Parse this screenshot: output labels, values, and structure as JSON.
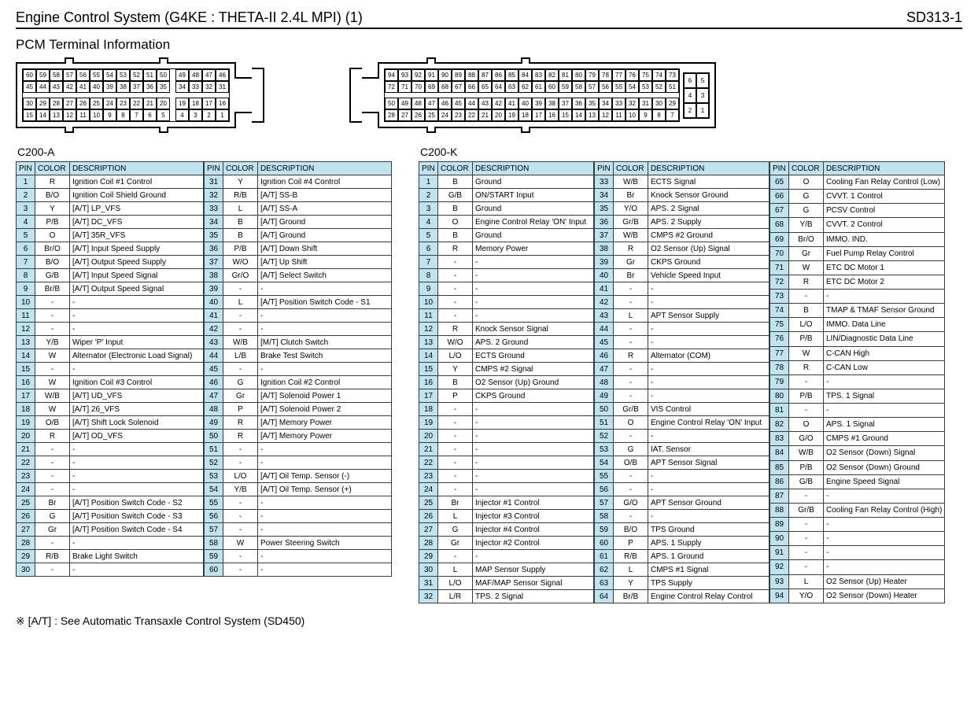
{
  "header": {
    "title": "Engine Control System (G4KE : THETA-II 2.4L MPI) (1)",
    "code": "SD313-1"
  },
  "subtitle": "PCM Terminal Information",
  "connectorA": {
    "label": "C200-A",
    "diagram": {
      "rows": [
        [
          60,
          59,
          58,
          57,
          56,
          55,
          54,
          53,
          52,
          51,
          50,
          null,
          49,
          48,
          47,
          46
        ],
        [
          45,
          44,
          43,
          42,
          41,
          40,
          39,
          38,
          37,
          36,
          35,
          null,
          34,
          33,
          32,
          31
        ],
        "gap",
        [
          30,
          29,
          28,
          27,
          26,
          25,
          24,
          23,
          22,
          21,
          20,
          null,
          19,
          18,
          17,
          16
        ],
        [
          15,
          14,
          13,
          12,
          11,
          10,
          9,
          8,
          7,
          6,
          5,
          null,
          4,
          3,
          2,
          1
        ]
      ]
    },
    "headers": [
      "PIN",
      "COLOR",
      "DESCRIPTION"
    ],
    "blocks": [
      [
        [
          1,
          "R",
          "Ignition Coil #1 Control"
        ],
        [
          2,
          "B/O",
          "Ignition Coil Shield Ground"
        ],
        [
          3,
          "Y",
          "[A/T] LP_VFS"
        ],
        [
          4,
          "P/B",
          "[A/T] DC_VFS"
        ],
        [
          5,
          "O",
          "[A/T] 35R_VFS"
        ],
        [
          6,
          "Br/O",
          "[A/T] Input Speed Supply"
        ],
        [
          7,
          "B/O",
          "[A/T] Output Speed Supply"
        ],
        [
          8,
          "G/B",
          "[A/T] Input Speed Signal"
        ],
        [
          9,
          "Br/B",
          "[A/T] Output Speed Signal"
        ],
        [
          10,
          "-",
          "-"
        ],
        [
          11,
          "-",
          "-"
        ],
        [
          12,
          "-",
          "-"
        ],
        [
          13,
          "Y/B",
          "Wiper 'P' Input"
        ],
        [
          14,
          "W",
          "Alternator (Electronic Load Signal)"
        ],
        [
          15,
          "-",
          "-"
        ],
        [
          16,
          "W",
          "Ignition Coil #3 Control"
        ],
        [
          17,
          "W/B",
          "[A/T] UD_VFS"
        ],
        [
          18,
          "W",
          "[A/T] 26_VFS"
        ],
        [
          19,
          "O/B",
          "[A/T] Shift Lock Solenoid"
        ],
        [
          20,
          "R",
          "[A/T] OD_VFS"
        ],
        [
          21,
          "-",
          "-"
        ],
        [
          22,
          "-",
          "-"
        ],
        [
          23,
          "-",
          "-"
        ],
        [
          24,
          "-",
          "-"
        ],
        [
          25,
          "Br",
          "[A/T] Position Switch Code - S2"
        ],
        [
          26,
          "G",
          "[A/T] Position Switch Code - S3"
        ],
        [
          27,
          "Gr",
          "[A/T] Position Switch Code - S4"
        ],
        [
          28,
          "-",
          "-"
        ],
        [
          29,
          "R/B",
          "Brake Light Switch"
        ],
        [
          30,
          "-",
          "-"
        ]
      ],
      [
        [
          31,
          "Y",
          "Ignition Coil #4 Control"
        ],
        [
          32,
          "R/B",
          "[A/T] SS-B"
        ],
        [
          33,
          "L",
          "[A/T] SS-A"
        ],
        [
          34,
          "B",
          "[A/T] Ground"
        ],
        [
          35,
          "B",
          "[A/T] Ground"
        ],
        [
          36,
          "P/B",
          "[A/T] Down Shift"
        ],
        [
          37,
          "W/O",
          "[A/T] Up Shift"
        ],
        [
          38,
          "Gr/O",
          "[A/T] Select Switch"
        ],
        [
          39,
          "-",
          "-"
        ],
        [
          40,
          "L",
          "[A/T] Position Switch Code - S1"
        ],
        [
          41,
          "-",
          "-"
        ],
        [
          42,
          "-",
          "-"
        ],
        [
          43,
          "W/B",
          "[M/T] Clutch Switch"
        ],
        [
          44,
          "L/B",
          "Brake Test Switch"
        ],
        [
          45,
          "-",
          "-"
        ],
        [
          46,
          "G",
          "Ignition Coil #2 Control"
        ],
        [
          47,
          "Gr",
          "[A/T] Solenoid Power 1"
        ],
        [
          48,
          "P",
          "[A/T] Solenoid Power 2"
        ],
        [
          49,
          "R",
          "[A/T] Memory Power"
        ],
        [
          50,
          "R",
          "[A/T] Memory Power"
        ],
        [
          51,
          "-",
          "-"
        ],
        [
          52,
          "-",
          "-"
        ],
        [
          53,
          "L/O",
          "[A/T] Oil Temp. Sensor (-)"
        ],
        [
          54,
          "Y/B",
          "[A/T] Oil Temp. Sensor (+)"
        ],
        [
          55,
          "-",
          "-"
        ],
        [
          56,
          "-",
          "-"
        ],
        [
          57,
          "-",
          "-"
        ],
        [
          58,
          "W",
          "Power Steering Switch"
        ],
        [
          59,
          "-",
          "-"
        ],
        [
          60,
          "-",
          "-"
        ]
      ]
    ]
  },
  "connectorK": {
    "label": "C200-K",
    "diagram": {
      "rows": [
        [
          94,
          93,
          92,
          91,
          90,
          89,
          88,
          87,
          86,
          85,
          84,
          83,
          82,
          81,
          80,
          79,
          78,
          77,
          76,
          75,
          74,
          73
        ],
        [
          72,
          71,
          70,
          69,
          68,
          67,
          66,
          65,
          64,
          63,
          62,
          61,
          60,
          59,
          58,
          57,
          56,
          55,
          54,
          53,
          52,
          51
        ],
        "gap",
        [
          50,
          49,
          48,
          47,
          46,
          45,
          44,
          43,
          42,
          41,
          40,
          39,
          38,
          37,
          36,
          35,
          34,
          33,
          32,
          31,
          30,
          29
        ],
        [
          28,
          27,
          26,
          25,
          24,
          23,
          22,
          21,
          20,
          19,
          18,
          17,
          16,
          15,
          14,
          13,
          12,
          11,
          10,
          9,
          8,
          7
        ]
      ],
      "side": [
        [
          6,
          5
        ],
        [
          4,
          3
        ],
        [
          2,
          1
        ]
      ]
    },
    "headers": [
      "PIN",
      "COLOR",
      "DESCRIPTION"
    ],
    "blocks": [
      [
        [
          1,
          "B",
          "Ground"
        ],
        [
          2,
          "G/B",
          "ON/START Input"
        ],
        [
          3,
          "B",
          "Ground"
        ],
        [
          4,
          "O",
          "Engine Control Relay 'ON' Input"
        ],
        [
          5,
          "B",
          "Ground"
        ],
        [
          6,
          "R",
          "Memory Power"
        ],
        [
          7,
          "-",
          "-"
        ],
        [
          8,
          "-",
          "-"
        ],
        [
          9,
          "-",
          "-"
        ],
        [
          10,
          "-",
          "-"
        ],
        [
          11,
          "-",
          "-"
        ],
        [
          12,
          "R",
          "Knock Sensor Signal"
        ],
        [
          13,
          "W/O",
          "APS. 2 Ground"
        ],
        [
          14,
          "L/O",
          "ECTS Ground"
        ],
        [
          15,
          "Y",
          "CMPS #2 Signal"
        ],
        [
          16,
          "B",
          "O2 Sensor (Up) Ground"
        ],
        [
          17,
          "P",
          "CKPS Ground"
        ],
        [
          18,
          "-",
          "-"
        ],
        [
          19,
          "-",
          "-"
        ],
        [
          20,
          "-",
          "-"
        ],
        [
          21,
          "-",
          "-"
        ],
        [
          22,
          "-",
          "-"
        ],
        [
          23,
          "-",
          "-"
        ],
        [
          24,
          "-",
          "-"
        ],
        [
          25,
          "Br",
          "Injector #1 Control"
        ],
        [
          26,
          "L",
          "Injector #3 Control"
        ],
        [
          27,
          "G",
          "Injector #4 Control"
        ],
        [
          28,
          "Gr",
          "Injector #2 Control"
        ],
        [
          29,
          "-",
          "-"
        ],
        [
          30,
          "L",
          "MAP Sensor Supply"
        ],
        [
          31,
          "L/O",
          "MAF/MAP Sensor Signal"
        ],
        [
          32,
          "L/R",
          "TPS. 2 Signal"
        ]
      ],
      [
        [
          33,
          "W/B",
          "ECTS Signal"
        ],
        [
          34,
          "Br",
          "Knock Sensor Ground"
        ],
        [
          35,
          "Y/O",
          "APS. 2 Signal"
        ],
        [
          36,
          "Gr/B",
          "APS. 2 Supply"
        ],
        [
          37,
          "W/B",
          "CMPS #2 Ground"
        ],
        [
          38,
          "R",
          "O2 Sensor (Up) Signal"
        ],
        [
          39,
          "Gr",
          "CKPS Ground"
        ],
        [
          40,
          "Br",
          "Vehicle Speed Input"
        ],
        [
          41,
          "-",
          "-"
        ],
        [
          42,
          "-",
          "-"
        ],
        [
          43,
          "L",
          "APT Sensor Supply"
        ],
        [
          44,
          "-",
          "-"
        ],
        [
          45,
          "-",
          "-"
        ],
        [
          46,
          "R",
          "Alternator (COM)"
        ],
        [
          47,
          "-",
          "-"
        ],
        [
          48,
          "-",
          "-"
        ],
        [
          49,
          "-",
          "-"
        ],
        [
          50,
          "Gr/B",
          "VIS Control"
        ],
        [
          51,
          "O",
          "Engine Control Relay 'ON' Input"
        ],
        [
          52,
          "-",
          "-"
        ],
        [
          53,
          "G",
          "IAT. Sensor"
        ],
        [
          54,
          "O/B",
          "APT Sensor Signal"
        ],
        [
          55,
          "-",
          "-"
        ],
        [
          56,
          "-",
          "-"
        ],
        [
          57,
          "G/O",
          "APT Sensor Ground"
        ],
        [
          58,
          "-",
          "-"
        ],
        [
          59,
          "B/O",
          "TPS Ground"
        ],
        [
          60,
          "P",
          "APS. 1 Supply"
        ],
        [
          61,
          "R/B",
          "APS. 1 Ground"
        ],
        [
          62,
          "L",
          "CMPS #1 Signal"
        ],
        [
          63,
          "Y",
          "TPS Supply"
        ],
        [
          64,
          "Br/B",
          "Engine Control Relay Control"
        ]
      ],
      [
        [
          65,
          "O",
          "Cooling Fan Relay Control (Low)"
        ],
        [
          66,
          "G",
          "CVVT. 1 Control"
        ],
        [
          67,
          "G",
          "PCSV Control"
        ],
        [
          68,
          "Y/B",
          "CVVT. 2 Control"
        ],
        [
          69,
          "Br/O",
          "IMMO. IND."
        ],
        [
          70,
          "Gr",
          "Fuel Pump Relay Control"
        ],
        [
          71,
          "W",
          "ETC DC Motor 1"
        ],
        [
          72,
          "R",
          "ETC DC Motor 2"
        ],
        [
          73,
          "-",
          "-"
        ],
        [
          74,
          "B",
          "TMAP & TMAF Sensor Ground"
        ],
        [
          75,
          "L/O",
          "IMMO. Data Line"
        ],
        [
          76,
          "P/B",
          "LIN/Diagnostic Data Line"
        ],
        [
          77,
          "W",
          "C-CAN High"
        ],
        [
          78,
          "R",
          "C-CAN Low"
        ],
        [
          79,
          "-",
          "-"
        ],
        [
          80,
          "P/B",
          "TPS. 1 Signal"
        ],
        [
          81,
          "-",
          "-"
        ],
        [
          82,
          "O",
          "APS. 1 Signal"
        ],
        [
          83,
          "G/O",
          "CMPS #1 Ground"
        ],
        [
          84,
          "W/B",
          "O2 Sensor (Down) Signal"
        ],
        [
          85,
          "P/B",
          "O2 Sensor (Down) Ground"
        ],
        [
          86,
          "G/B",
          "Engine Speed Signal"
        ],
        [
          87,
          "-",
          "-"
        ],
        [
          88,
          "Gr/B",
          "Cooling Fan Relay Control (High)"
        ],
        [
          89,
          "-",
          "-"
        ],
        [
          90,
          "-",
          "-"
        ],
        [
          91,
          "-",
          "-"
        ],
        [
          92,
          "-",
          "-"
        ],
        [
          93,
          "L",
          "O2 Sensor (Up) Heater"
        ],
        [
          94,
          "Y/O",
          "O2 Sensor (Down) Heater"
        ]
      ]
    ]
  },
  "footnote": "※ [A/T] : See Automatic Transaxle Control System   (SD450)",
  "style": {
    "header_bg": "#bfe3ef",
    "border": "#3a3a3a",
    "font_size": 10
  }
}
